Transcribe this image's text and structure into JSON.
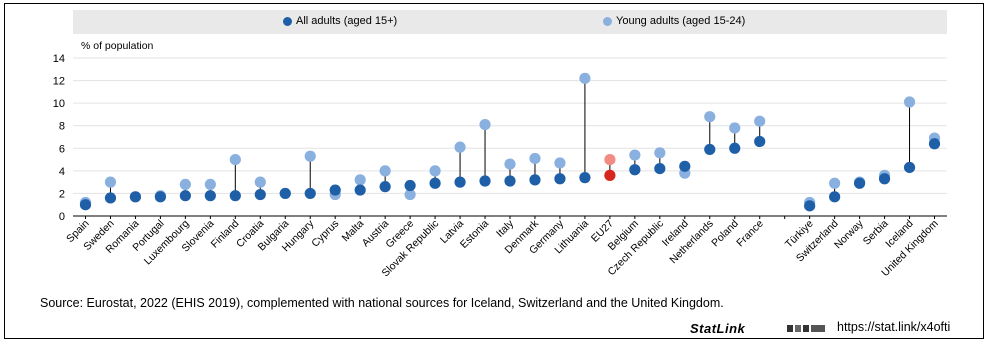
{
  "chart_data": {
    "type": "scatter",
    "ylabel": "% of population",
    "ylim": [
      0,
      14
    ],
    "yticks": [
      0,
      2,
      4,
      6,
      8,
      10,
      12,
      14
    ],
    "grid": true,
    "legend_position": "top",
    "colors": {
      "all": "#1f5fa8",
      "young": "#8ab0df",
      "eu_all": "#d7261e",
      "eu_young": "#f28b82",
      "grid": "#e3e3e3",
      "connector": "#000000"
    },
    "categories": [
      "Spain",
      "Sweden",
      "Romania",
      "Portugal",
      "Luxembourg",
      "Slovenia",
      "Finland",
      "Croatia",
      "Bulgaria",
      "Hungary",
      "Cyprus",
      "Malta",
      "Austria",
      "Greece",
      "Slovak Republic",
      "Latvia",
      "Estonia",
      "Italy",
      "Denmark",
      "Germany",
      "Lithuania",
      "EU27",
      "Belgium",
      "Czech Republic",
      "Ireland",
      "Netherlands",
      "Poland",
      "France",
      "",
      "Türkiye",
      "Switzerland",
      "Norway",
      "Serbia",
      "Iceland",
      "United Kingdom"
    ],
    "highlight": "EU27",
    "series": [
      {
        "name": "All adults (aged 15+)",
        "values": [
          1.0,
          1.6,
          1.7,
          1.7,
          1.8,
          1.8,
          1.8,
          1.9,
          2.0,
          2.0,
          2.3,
          2.3,
          2.6,
          2.7,
          2.9,
          3.0,
          3.1,
          3.1,
          3.2,
          3.3,
          3.4,
          3.6,
          4.1,
          4.2,
          4.4,
          5.9,
          6.0,
          6.6,
          null,
          0.9,
          1.7,
          2.9,
          3.3,
          4.3,
          6.4
        ]
      },
      {
        "name": "Young adults (aged 15-24)",
        "values": [
          1.2,
          3.0,
          1.7,
          1.8,
          2.8,
          2.8,
          5.0,
          3.0,
          2.0,
          5.3,
          1.9,
          3.2,
          4.0,
          1.9,
          4.0,
          6.1,
          8.1,
          4.6,
          5.1,
          4.7,
          12.2,
          5.0,
          5.4,
          5.6,
          3.8,
          8.8,
          7.8,
          8.4,
          null,
          1.2,
          2.9,
          3.0,
          3.6,
          10.1,
          6.9
        ]
      }
    ]
  },
  "footer": {
    "source": "Source: Eurostat, 2022 (EHIS 2019), complemented with national sources for Iceland, Switzerland and the United Kingdom.",
    "statlink": "StatLink",
    "statlink_logo": "oecd-statlink-logo",
    "url": "https://stat.link/x4ofti"
  }
}
